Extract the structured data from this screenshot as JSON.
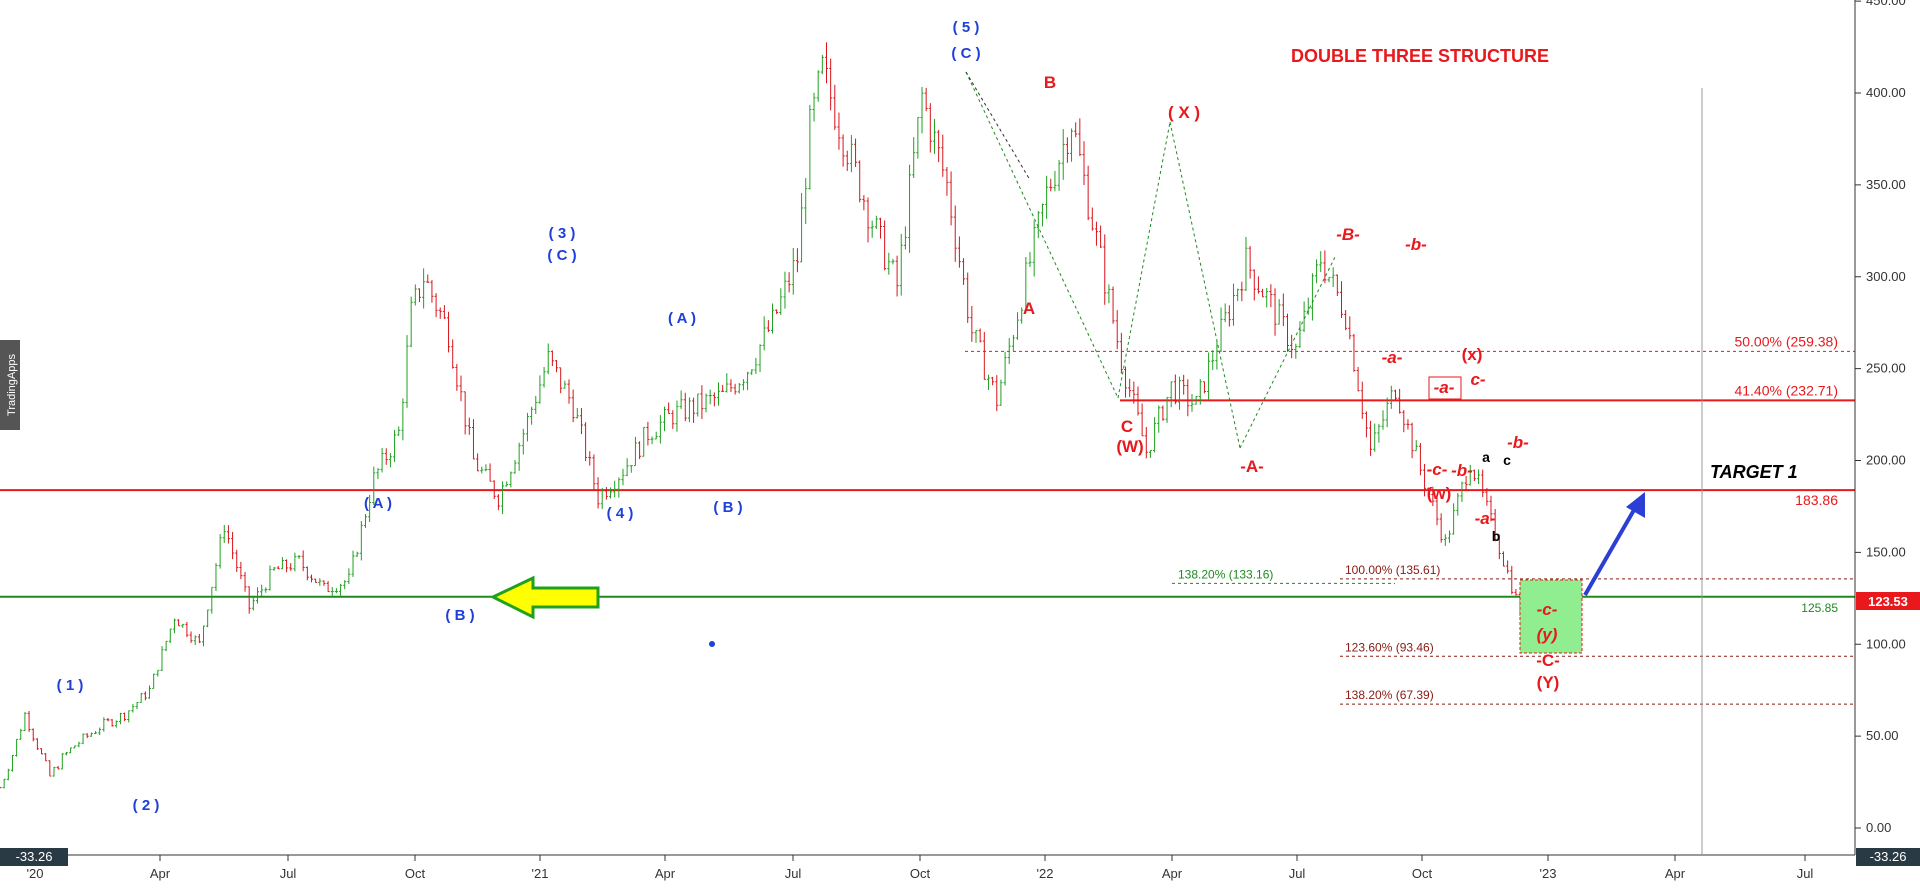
{
  "chart_data": {
    "type": "line",
    "title": "DOUBLE THREE  STRUCTURE",
    "watermark": "TradingApps",
    "y_axis": {
      "ticks": [
        "0.00",
        "50.00",
        "100.00",
        "150.00",
        "200.00",
        "250.00",
        "300.00",
        "350.00",
        "400.00",
        "450.00"
      ],
      "range": [
        -33.26,
        450
      ],
      "min_label": "-33.26",
      "last_price_label": "123.53",
      "last_price": 123.53
    },
    "x_axis": {
      "ticks": [
        "'20",
        "Apr",
        "Jul",
        "Oct",
        "'21",
        "Apr",
        "Jul",
        "Oct",
        "'22",
        "Apr",
        "Jul",
        "Oct",
        "'23",
        "Apr",
        "Jul"
      ],
      "min_label": "-33.26"
    },
    "series": [
      {
        "points": [
          [
            0,
            22
          ],
          [
            0.5,
            40
          ],
          [
            1,
            62
          ],
          [
            1.5,
            45
          ],
          [
            2,
            28
          ],
          [
            2.5,
            38
          ],
          [
            3,
            45
          ],
          [
            4,
            55
          ],
          [
            5,
            62
          ],
          [
            6,
            75
          ],
          [
            7,
            115
          ],
          [
            8,
            100
          ],
          [
            9,
            165
          ],
          [
            10,
            120
          ],
          [
            11,
            140
          ],
          [
            12,
            145
          ],
          [
            13,
            130
          ],
          [
            14,
            135
          ],
          [
            15,
            190
          ],
          [
            16,
            215
          ],
          [
            16.5,
            280
          ],
          [
            17,
            300
          ],
          [
            18,
            270
          ],
          [
            19,
            200
          ],
          [
            20,
            180
          ],
          [
            21,
            215
          ],
          [
            22,
            255
          ],
          [
            23,
            230
          ],
          [
            24,
            180
          ],
          [
            25,
            195
          ],
          [
            26,
            215
          ],
          [
            27,
            225
          ],
          [
            28,
            230
          ],
          [
            29,
            235
          ],
          [
            30,
            250
          ],
          [
            31,
            275
          ],
          [
            32,
            310
          ],
          [
            32.5,
            380
          ],
          [
            33,
            412
          ],
          [
            34,
            370
          ],
          [
            35,
            330
          ],
          [
            36,
            295
          ],
          [
            37,
            398
          ],
          [
            38,
            350
          ],
          [
            39,
            270
          ],
          [
            40,
            233
          ],
          [
            41,
            290
          ],
          [
            42,
            345
          ],
          [
            43,
            385
          ],
          [
            44,
            320
          ],
          [
            45,
            255
          ],
          [
            46,
            205
          ],
          [
            47,
            240
          ],
          [
            48,
            230
          ],
          [
            49,
            270
          ],
          [
            50,
            308
          ],
          [
            51,
            285
          ],
          [
            52,
            260
          ],
          [
            53,
            310
          ],
          [
            54,
            280
          ],
          [
            55,
            205
          ],
          [
            56,
            240
          ],
          [
            57,
            195
          ],
          [
            58,
            155
          ],
          [
            59,
            200
          ],
          [
            60,
            160
          ],
          [
            61,
            118
          ],
          [
            62,
            123.53
          ]
        ]
      }
    ],
    "horizontal_levels": [
      {
        "value": 183.86,
        "label": "183.86",
        "color": "#e8181c",
        "style": "solid"
      },
      {
        "value": 232.71,
        "label": "41.40% (232.71)",
        "color": "#e8181c",
        "style": "solid"
      },
      {
        "value": 259.38,
        "label": "50.00% (259.38)",
        "color": "#e8181c",
        "style": "dashed"
      },
      {
        "value": 125.85,
        "label": "125.85",
        "color": "#1f8a1f",
        "style": "solid"
      },
      {
        "value": 133.16,
        "label": "138.20% (133.16)",
        "color": "#1f8a1f",
        "style": "dashed"
      },
      {
        "value": 135.61,
        "label": "100.00% (135.61)",
        "color": "#8a1a12",
        "style": "dashed"
      },
      {
        "value": 93.46,
        "label": "123.60% (93.46)",
        "color": "#8a1a12",
        "style": "dashed"
      },
      {
        "value": 67.39,
        "label": "138.20% (67.39)",
        "color": "#8a1a12",
        "style": "dashed"
      }
    ],
    "target_label": "TARGET 1",
    "wave_labels": {
      "blue": [
        "( 1 )",
        "( 2 )",
        "( A )",
        "( B )",
        "( 3 )",
        "( C )",
        "( 4 )",
        "( A )",
        "( B )",
        "( 5 )",
        "( C )",
        "( B )"
      ],
      "red": [
        "A",
        "B",
        "C",
        "(W)",
        "( X )",
        "-A-",
        "-B-",
        "-a-",
        "-b-",
        "(x)",
        "-a-",
        "c-",
        "-c-",
        "-b-",
        "(w)",
        "-a-",
        "-b-",
        "-c-",
        "(y)",
        "-C-",
        "(Y)"
      ],
      "black": [
        "a",
        "b",
        "c"
      ]
    },
    "colors": {
      "candle_up": "#1fa01f",
      "candle_down": "#d8141a",
      "blue_labels": "#1f3fd8",
      "red_labels": "#e8181c",
      "green_box": "#90ee90",
      "yellow_arrow": "#ffff00",
      "projection_arrow": "#2b3fd4"
    }
  }
}
